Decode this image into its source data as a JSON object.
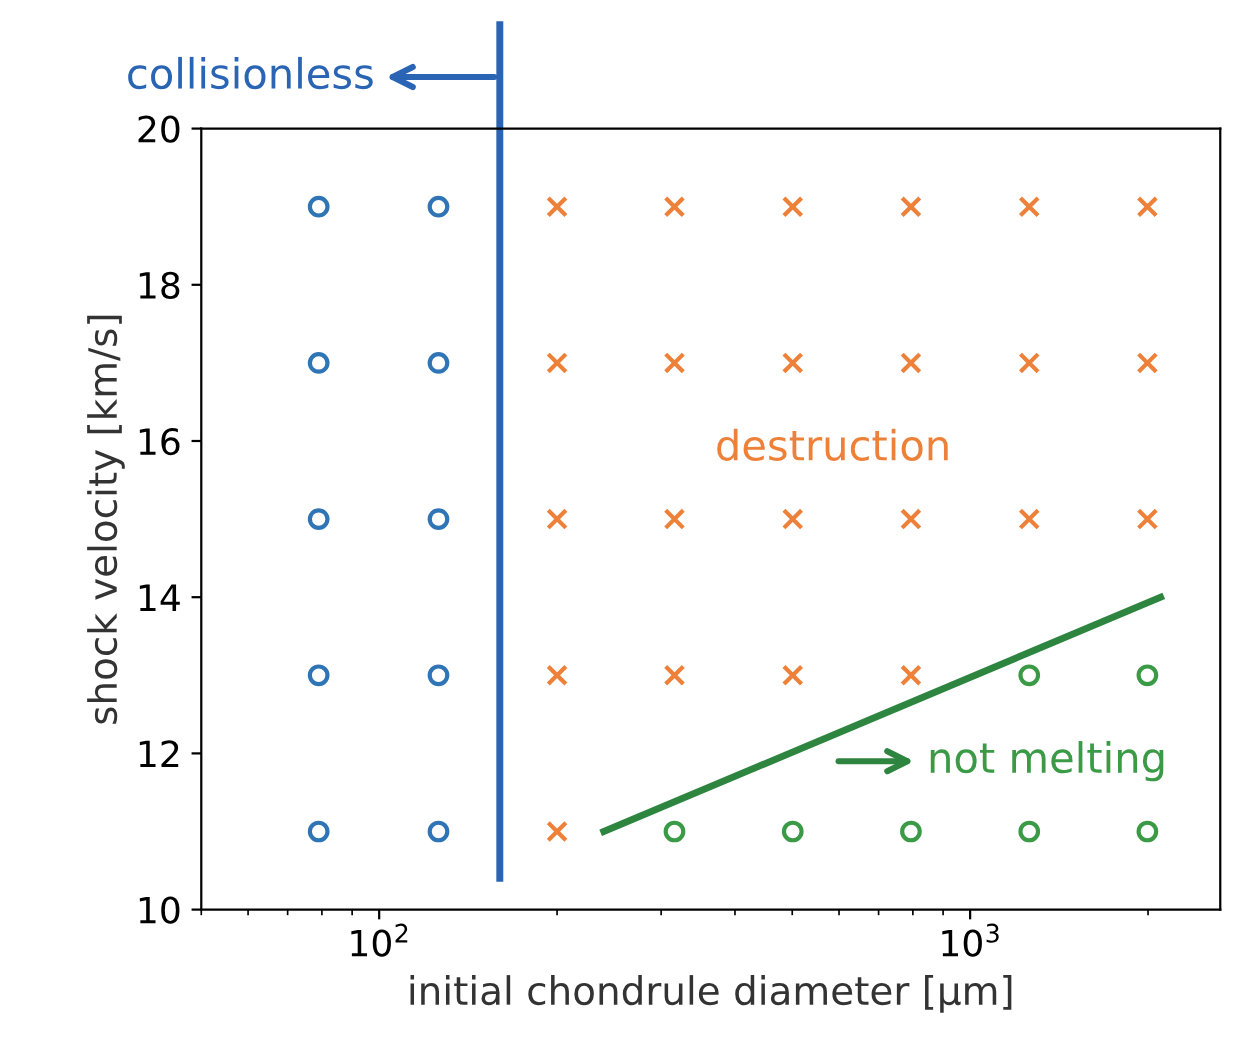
{
  "chart_data": {
    "type": "scatter",
    "xlabel": "initial chondrule diameter [µm]",
    "ylabel": "shock velocity [km/s]",
    "log": "x",
    "grid": false,
    "legend": false,
    "xlim": [
      50,
      2650
    ],
    "xticks": [
      {
        "value": 100,
        "label": "10$^{2}$"
      },
      {
        "value": 1000,
        "label": "10$^{3}$"
      }
    ],
    "ylim": [
      10,
      20
    ],
    "yticks": [
      10,
      12,
      14,
      16,
      18,
      20
    ],
    "series": [
      {
        "marker": "circle",
        "color": "#2f74b5",
        "x": [
          79,
          79,
          79,
          79,
          79,
          126,
          126,
          126,
          126,
          126
        ],
        "values": [
          11,
          13,
          15,
          17,
          19,
          11,
          13,
          15,
          17,
          19
        ]
      },
      {
        "marker": "cross",
        "name": "destruction",
        "color": "#ee8139",
        "x": [
          200,
          316,
          501,
          794,
          1259,
          1995,
          200,
          316,
          501,
          794,
          1259,
          1995,
          200,
          316,
          501,
          794,
          1259,
          1995,
          200,
          316,
          501,
          794,
          200
        ],
        "values": [
          19,
          19,
          19,
          19,
          19,
          19,
          17,
          17,
          17,
          17,
          17,
          17,
          15,
          15,
          15,
          15,
          15,
          15,
          13,
          13,
          13,
          13,
          11
        ]
      },
      {
        "marker": "circle",
        "name": "not melting",
        "color": "#3a9a45",
        "x": [
          1259,
          1995,
          316,
          501,
          794,
          1259,
          1995
        ],
        "values": [
          13,
          13,
          11,
          11,
          11,
          11,
          11
        ]
      },
      {
        "type": "line",
        "marker": "none",
        "line_style": "solid",
        "color": "#2e8540",
        "x": [
          240,
          2100
        ],
        "values": [
          11,
          14
        ]
      }
    ],
    "ref_lines": [
      {
        "axis": "x",
        "value": 160,
        "label": "collisionless",
        "color": "#2a64b4",
        "line_style": "solid"
      }
    ]
  }
}
